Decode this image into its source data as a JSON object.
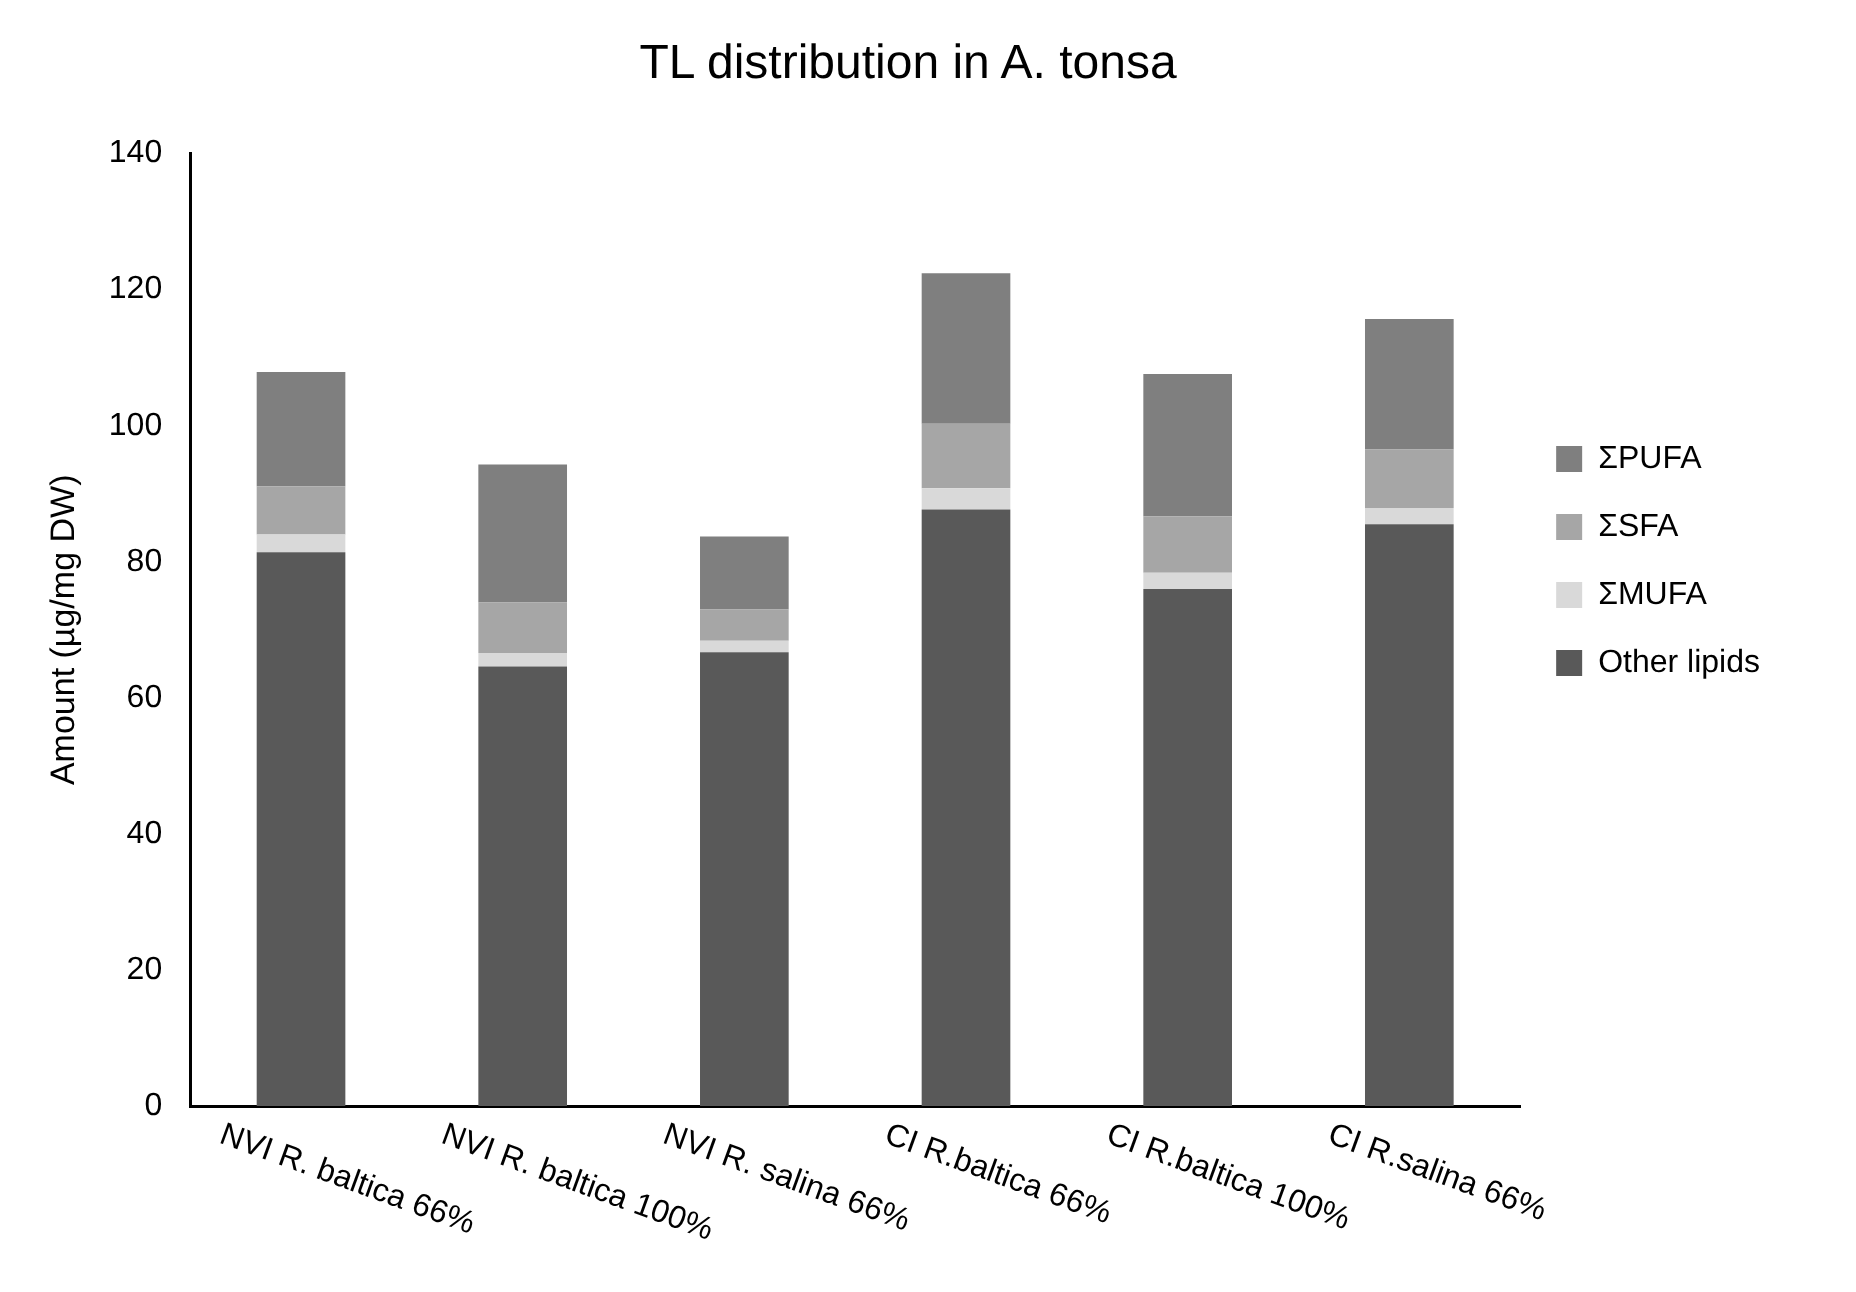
{
  "chart_data": {
    "type": "bar",
    "title": "TL distribution in A. tonsa",
    "ylabel": "Amount (µg/mg DW)",
    "categories": [
      "NVI R. baltica 66%",
      "NVI R. baltica 100%",
      "NVI R. salina 66%",
      "CI R.baltica 66%",
      "CI R.baltica 100%",
      "CI R.salina 66%"
    ],
    "stacked": true,
    "ylim": [
      0,
      140
    ],
    "yticks": [
      0,
      20,
      40,
      60,
      80,
      100,
      120,
      140
    ],
    "grid": false,
    "legend": "right",
    "series": [
      {
        "name": "Other lipids",
        "color": "#595959",
        "values": [
          81.4,
          64.6,
          66.7,
          87.7,
          76.0,
          85.5
        ]
      },
      {
        "name": "ΣMUFA",
        "color": "#d9d9d9",
        "values": [
          2.6,
          2.0,
          1.7,
          3.1,
          2.4,
          2.4
        ]
      },
      {
        "name": "ΣSFA",
        "color": "#a6a6a6",
        "values": [
          7.1,
          7.4,
          4.6,
          9.5,
          8.3,
          8.6
        ]
      },
      {
        "name": "ΣPUFA",
        "color": "#7f7f7f",
        "values": [
          16.8,
          20.3,
          10.7,
          22.1,
          20.9,
          19.2
        ]
      }
    ]
  }
}
